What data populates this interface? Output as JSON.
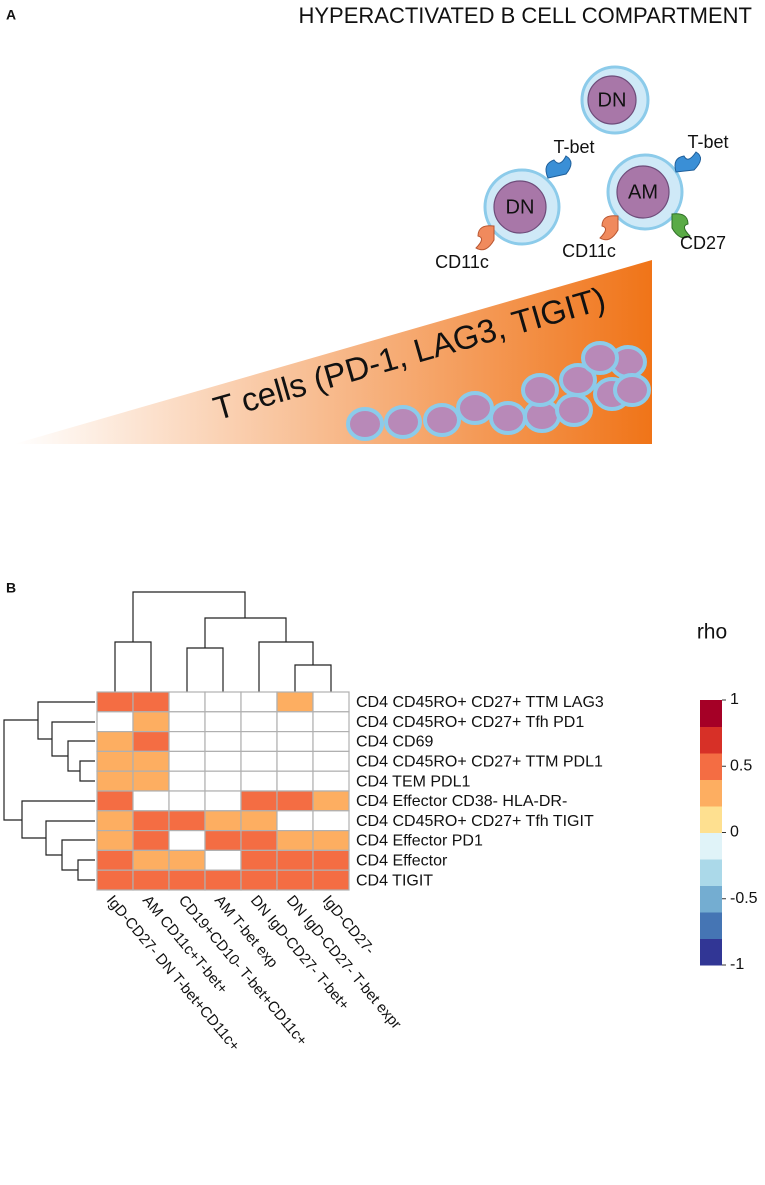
{
  "panel_a": {
    "label": "A",
    "title": "HYPERACTIVATED B CELL COMPARTMENT",
    "cells": [
      "DN",
      "DN",
      "AM"
    ],
    "markers": [
      "T-bet",
      "T-bet",
      "CD11c",
      "CD11c",
      "CD27"
    ],
    "gradient_label": "T cells (PD-1, LAG3, TIGIT)"
  },
  "panel_b": {
    "label": "B"
  },
  "chart_data": {
    "type": "heatmap",
    "rows": [
      "CD4 CD45RO+ CD27+ TTM LAG3",
      "CD4 CD45RO+ CD27+ Tfh PD1",
      "CD4 CD69",
      "CD4 CD45RO+ CD27+ TTM PDL1",
      "CD4 TEM PDL1",
      "CD4 Effector CD38- HLA-DR-",
      "CD4 CD45RO+ CD27+ Tfh TIGIT",
      "CD4 Effector PD1",
      "CD4 Effector",
      "CD4 TIGIT"
    ],
    "columns": [
      "IgD-CD27- DN T-bet+CD11c+",
      "AM CD11c+T-bet+",
      "CD19+CD10- T-bet+CD11c+",
      "AM T-bet exp",
      "DN IgD-CD27- T-bet+",
      "DN IgD-CD27- T-bet expr",
      "IgD-CD27-"
    ],
    "values": [
      [
        0.5,
        0.5,
        null,
        null,
        null,
        0.3,
        null
      ],
      [
        null,
        0.3,
        null,
        null,
        null,
        null,
        null
      ],
      [
        0.3,
        0.5,
        null,
        null,
        null,
        null,
        null
      ],
      [
        0.3,
        0.3,
        null,
        null,
        null,
        null,
        null
      ],
      [
        0.3,
        0.3,
        null,
        null,
        null,
        null,
        null
      ],
      [
        0.5,
        null,
        null,
        null,
        0.5,
        0.5,
        0.3
      ],
      [
        0.3,
        0.5,
        0.5,
        0.3,
        0.3,
        null,
        null
      ],
      [
        0.3,
        0.5,
        null,
        0.5,
        0.5,
        0.3,
        0.3
      ],
      [
        0.5,
        0.3,
        0.3,
        null,
        0.5,
        0.5,
        0.5
      ],
      [
        0.5,
        0.5,
        0.5,
        0.5,
        0.5,
        0.5,
        0.5
      ]
    ],
    "legend_title": "rho",
    "colorscale": [
      "#313695",
      "#4575b4",
      "#74add1",
      "#abd9e9",
      "#e0f3f8",
      "#fee090",
      "#fdae61",
      "#f46d43",
      "#d73027",
      "#a50026"
    ],
    "clim": [
      -1,
      1
    ],
    "cticks": [
      1,
      0.5,
      0,
      -0.5,
      -1
    ]
  }
}
